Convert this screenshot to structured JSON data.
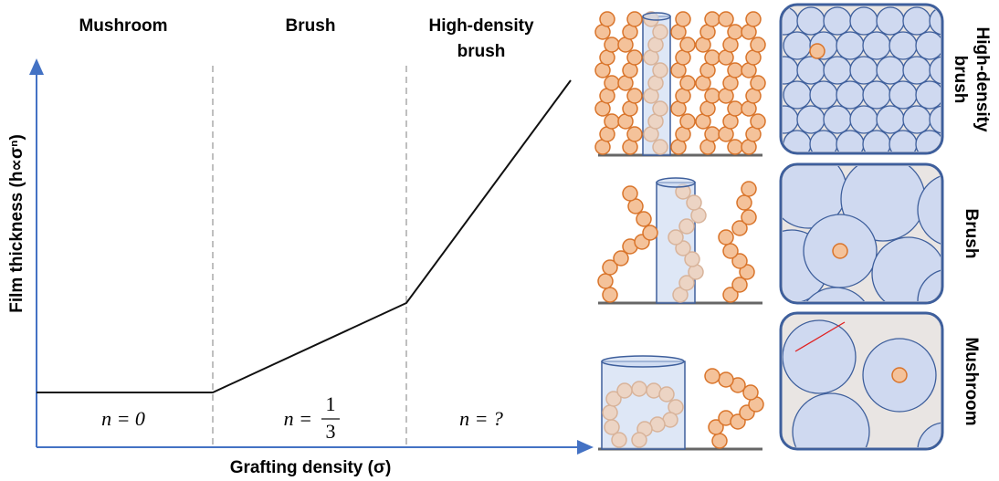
{
  "regions": [
    {
      "label": [
        "Mushroom"
      ],
      "exponent": {
        "lhs": "n = 0"
      }
    },
    {
      "label": [
        "Brush"
      ],
      "exponent": {
        "lhs": "n =",
        "numerator": "1",
        "denominator": "3"
      }
    },
    {
      "label": [
        "High-density",
        "brush"
      ],
      "exponent": {
        "lhs": "n = ?"
      }
    }
  ],
  "y_axis_label": "Film thickness (h∝σⁿ)",
  "x_axis_label": "Grafting density (σ)",
  "side_labels": [
    [
      "High-density",
      "brush"
    ],
    [
      "Brush"
    ],
    [
      "Mushroom"
    ]
  ]
}
